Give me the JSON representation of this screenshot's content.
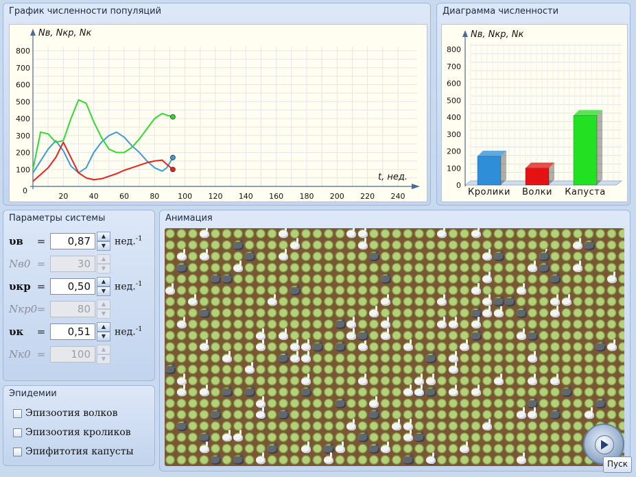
{
  "graph": {
    "title": "График численности популяций",
    "x_ticks": [
      "0",
      "20",
      "40",
      "60",
      "80",
      "100",
      "120",
      "140",
      "160",
      "180",
      "200",
      "220",
      "240"
    ],
    "y_ticks": [
      "0",
      "100",
      "200",
      "300",
      "400",
      "500",
      "600",
      "700",
      "800"
    ],
    "x_label": "t, нед.",
    "y_label": "Nв, Nкр, Nк"
  },
  "chart_data": [
    {
      "type": "line",
      "title": "График численности популяций",
      "xlabel": "t, нед.",
      "ylabel": "Nв, Nкр, Nк",
      "xlim": [
        0,
        250
      ],
      "ylim": [
        0,
        800
      ],
      "series": [
        {
          "name": "Кролики",
          "color": "#3d9ad6",
          "x": [
            0,
            5,
            10,
            15,
            20,
            25,
            30,
            35,
            40,
            45,
            50,
            55,
            60,
            65,
            70,
            75,
            80,
            85,
            88,
            92
          ],
          "y": [
            80,
            150,
            220,
            270,
            210,
            120,
            80,
            110,
            200,
            260,
            300,
            320,
            290,
            240,
            200,
            150,
            110,
            90,
            110,
            170
          ]
        },
        {
          "name": "Волки",
          "color": "#e82020",
          "x": [
            0,
            5,
            10,
            15,
            20,
            25,
            30,
            35,
            40,
            45,
            50,
            55,
            60,
            65,
            70,
            75,
            80,
            85,
            88,
            92
          ],
          "y": [
            30,
            70,
            110,
            170,
            260,
            170,
            80,
            50,
            40,
            45,
            60,
            75,
            95,
            110,
            125,
            140,
            150,
            155,
            130,
            100
          ]
        },
        {
          "name": "Капуста",
          "color": "#2fd92f",
          "x": [
            0,
            5,
            10,
            15,
            20,
            25,
            30,
            35,
            40,
            45,
            50,
            55,
            60,
            65,
            70,
            75,
            80,
            85,
            88,
            92
          ],
          "y": [
            100,
            320,
            310,
            260,
            270,
            400,
            510,
            490,
            380,
            290,
            220,
            200,
            200,
            230,
            280,
            340,
            400,
            430,
            420,
            410
          ]
        }
      ]
    },
    {
      "type": "bar",
      "title": "Диаграмма численности",
      "ylabel": "Nв, Nкр, Nк",
      "categories": [
        "Кролики",
        "Волки",
        "Капуста"
      ],
      "values": [
        170,
        100,
        410
      ],
      "colors": [
        "#2e8ed8",
        "#e41212",
        "#22e022"
      ],
      "ylim": [
        0,
        800
      ]
    }
  ],
  "diagram": {
    "title": "Диаграмма численности",
    "y_ticks": [
      "0",
      "100",
      "200",
      "300",
      "400",
      "500",
      "600",
      "700",
      "800"
    ],
    "y_label": "Nв, Nкр, Nк",
    "categories": [
      "Кролики",
      "Волки",
      "Капуста"
    ]
  },
  "params": {
    "title": "Параметры системы",
    "rows": [
      {
        "symbol": "υв",
        "value": "0,87",
        "unit": "нед.",
        "exp": "-1",
        "enabled": true
      },
      {
        "symbol": "Nв0",
        "value": "30",
        "enabled": false
      },
      {
        "symbol": "υкр",
        "value": "0,50",
        "unit": "нед.",
        "exp": "-1",
        "enabled": true
      },
      {
        "symbol": "Nкр0",
        "value": "80",
        "enabled": false
      },
      {
        "symbol": "υк",
        "value": "0,51",
        "unit": "нед.",
        "exp": "-1",
        "enabled": true
      },
      {
        "symbol": "Nк0",
        "value": "100",
        "enabled": false
      }
    ],
    "eq": "="
  },
  "epidemics": {
    "title": "Эпидемии",
    "items": [
      "Эпизоотия волков",
      "Эпизоотия кроликов",
      "Эпифитотия капусты"
    ]
  },
  "animation": {
    "title": "Анимация",
    "start_label": "Пуск"
  }
}
